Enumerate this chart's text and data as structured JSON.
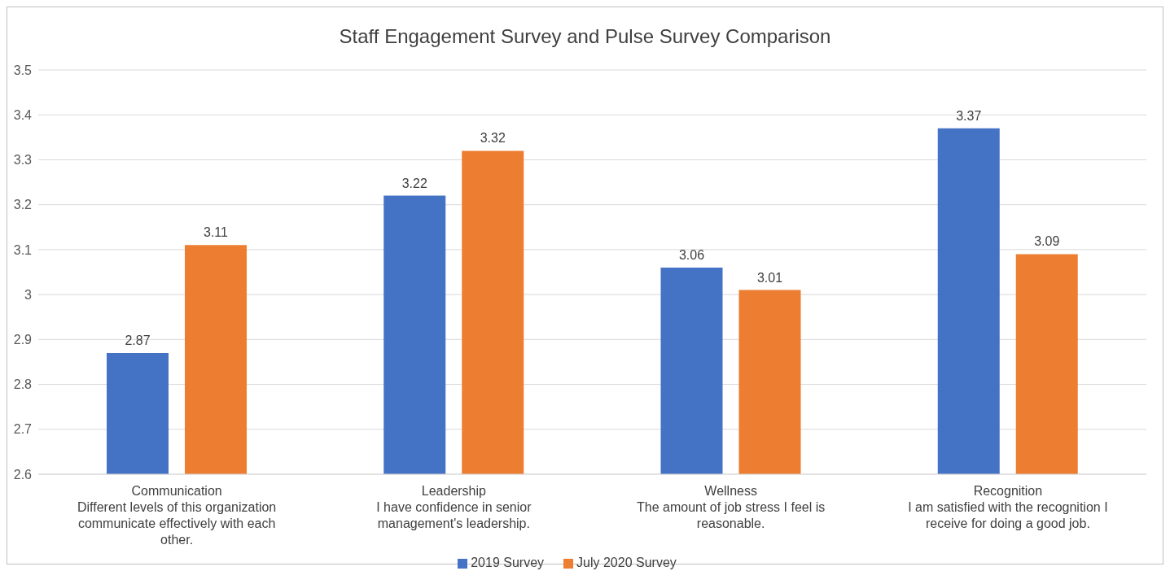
{
  "chart_data": {
    "type": "bar",
    "title": "Staff Engagement Survey and Pulse Survey Comparison",
    "categories": [
      "Communication\nDifferent levels of this organization communicate effectively with each other.",
      "Leadership\nI have confidence in senior management's leadership.",
      "Wellness\nThe amount of job stress I feel is reasonable.",
      "Recognition\nI am satisfied with the recognition I receive for doing a good job."
    ],
    "series": [
      {
        "name": "2019 Survey",
        "color": "#4472c4",
        "values": [
          2.87,
          3.22,
          3.06,
          3.37
        ]
      },
      {
        "name": "July 2020 Survey",
        "color": "#ed7d31",
        "values": [
          3.11,
          3.32,
          3.01,
          3.09
        ]
      }
    ],
    "ylim": [
      2.6,
      3.5
    ],
    "yticks": [
      2.6,
      2.7,
      2.8,
      2.9,
      3,
      3.1,
      3.2,
      3.3,
      3.4,
      3.5
    ],
    "grid": "y",
    "legend": "bottom",
    "data_labels": true
  }
}
